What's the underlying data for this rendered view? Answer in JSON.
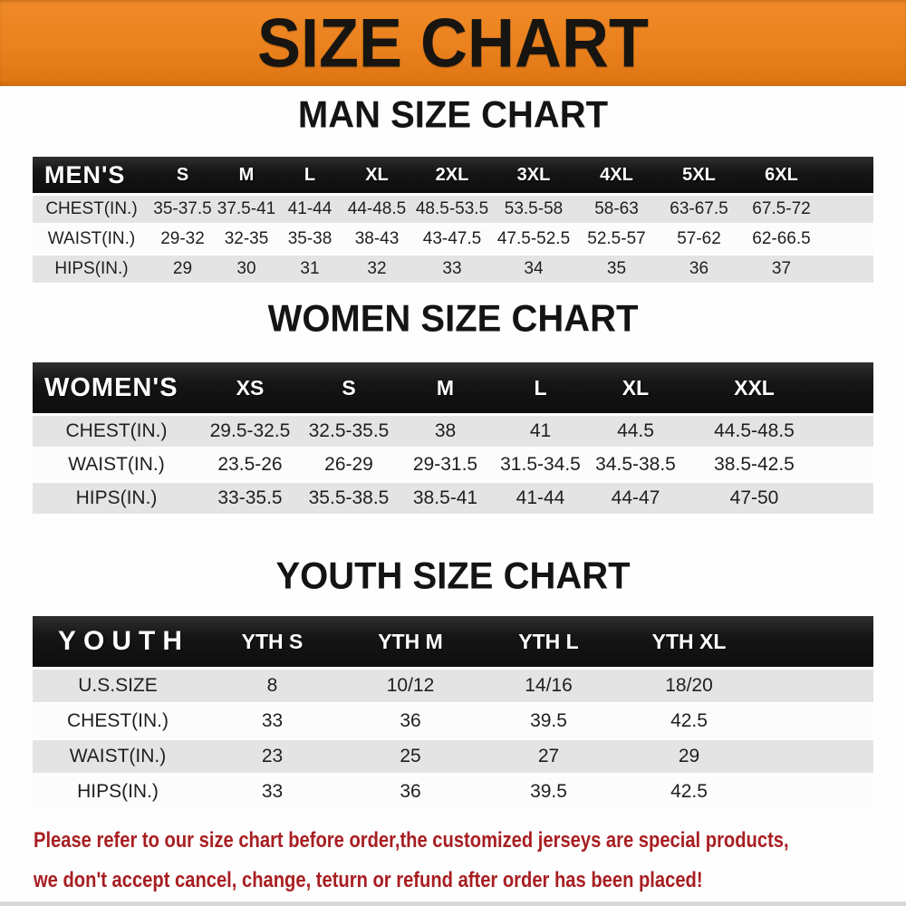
{
  "banner": {
    "title": "SIZE CHART"
  },
  "colors": {
    "banner_bg": "#ea811e",
    "table_header_bg": "#161616",
    "table_header_text": "#ffffff",
    "row_alt_bg": "#e4e4e4",
    "row_bg": "#fcfcfc",
    "body_text": "#1f1f1f",
    "footer_text": "#a81e22",
    "title_text": "#141414"
  },
  "sections": [
    {
      "id": "men",
      "title": "MAN SIZE CHART",
      "header": {
        "label": "MEN'S",
        "sizes": [
          "S",
          "M",
          "L",
          "XL",
          "2XL",
          "3XL",
          "4XL",
          "5XL",
          "6XL"
        ]
      },
      "rows": [
        {
          "label": "CHEST(IN.)",
          "values": [
            "35-37.5",
            "37.5-41",
            "41-44",
            "44-48.5",
            "48.5-53.5",
            "53.5-58",
            "58-63",
            "63-67.5",
            "67.5-72"
          ]
        },
        {
          "label": "WAIST(IN.)",
          "values": [
            "29-32",
            "32-35",
            "35-38",
            "38-43",
            "43-47.5",
            "47.5-52.5",
            "52.5-57",
            "57-62",
            "62-66.5"
          ]
        },
        {
          "label": "HIPS(IN.)",
          "values": [
            "29",
            "30",
            "31",
            "32",
            "33",
            "34",
            "35",
            "36",
            "37"
          ]
        }
      ]
    },
    {
      "id": "women",
      "title": "WOMEN SIZE CHART",
      "header": {
        "label": "WOMEN'S",
        "sizes": [
          "XS",
          "S",
          "M",
          "L",
          "XL",
          "XXL"
        ]
      },
      "rows": [
        {
          "label": "CHEST(IN.)",
          "values": [
            "29.5-32.5",
            "32.5-35.5",
            "38",
            "41",
            "44.5",
            "44.5-48.5"
          ]
        },
        {
          "label": "WAIST(IN.)",
          "values": [
            "23.5-26",
            "26-29",
            "29-31.5",
            "31.5-34.5",
            "34.5-38.5",
            "38.5-42.5"
          ]
        },
        {
          "label": "HIPS(IN.)",
          "values": [
            "33-35.5",
            "35.5-38.5",
            "38.5-41",
            "41-44",
            "44-47",
            "47-50"
          ]
        }
      ]
    },
    {
      "id": "youth",
      "title": "YOUTH SIZE CHART",
      "header": {
        "label": "YOUTH",
        "sizes": [
          "YTH S",
          "YTH M",
          "YTH L",
          "YTH XL"
        ]
      },
      "rows": [
        {
          "label": "U.S.SIZE",
          "values": [
            "8",
            "10/12",
            "14/16",
            "18/20"
          ]
        },
        {
          "label": "CHEST(IN.)",
          "values": [
            "33",
            "36",
            "39.5",
            "42.5"
          ]
        },
        {
          "label": "WAIST(IN.)",
          "values": [
            "23",
            "25",
            "27",
            "29"
          ]
        },
        {
          "label": "HIPS(IN.)",
          "values": [
            "33",
            "36",
            "39.5",
            "42.5"
          ]
        }
      ]
    }
  ],
  "footer": {
    "line1": "Please refer to our size chart before order,the customized jerseys are special products,",
    "line2": "we don't accept cancel, change, teturn or refund after order has been placed!"
  }
}
